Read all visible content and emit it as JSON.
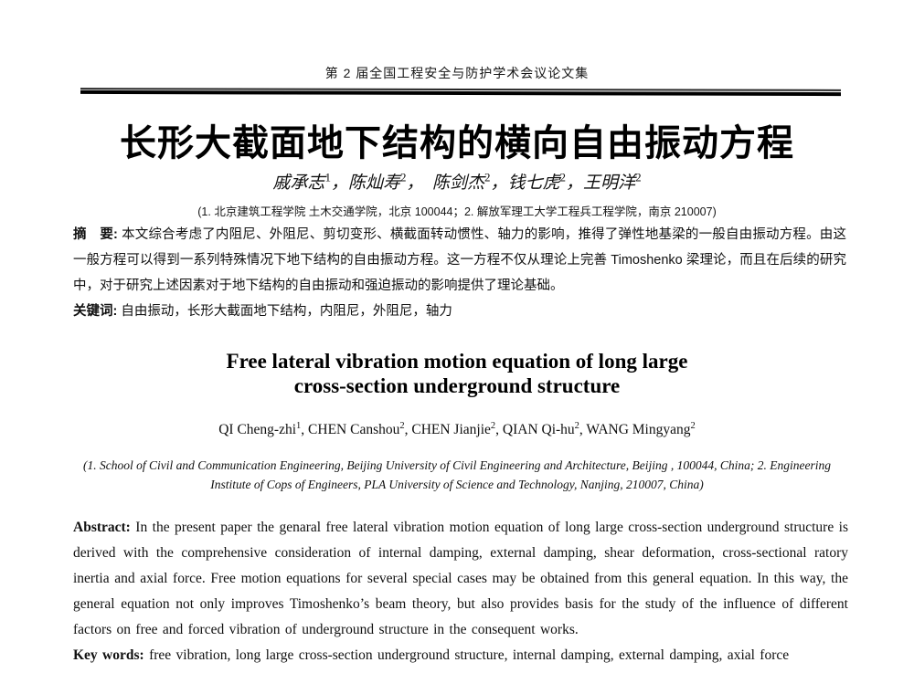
{
  "header": {
    "proceedings_title": "第 2 届全国工程安全与防护学术会议论文集"
  },
  "cn": {
    "title": "长形大截面地下结构的横向自由振动方程",
    "authors": [
      {
        "name": "戚承志",
        "sup": "1",
        "sep": "，"
      },
      {
        "name": "陈灿寿",
        "sup": "2",
        "sep": "，　"
      },
      {
        "name": "陈剑杰",
        "sup": "2",
        "sep": "，"
      },
      {
        "name": "钱七虎",
        "sup": "2",
        "sep": "，"
      },
      {
        "name": "王明洋",
        "sup": "2",
        "sep": ""
      }
    ],
    "affiliation": "(1. 北京建筑工程学院 土木交通学院，北京 100044；2. 解放军理工大学工程兵工程学院，南京 210007)",
    "abstract_label": "摘　要:",
    "abstract_text": "本文综合考虑了内阻尼、外阻尼、剪切变形、横截面转动惯性、轴力的影响，推得了弹性地基梁的一般自由振动方程。由这一般方程可以得到一系列特殊情况下地下结构的自由振动方程。这一方程不仅从理论上完善 Timoshenko 梁理论，而且在后续的研究中，对于研究上述因素对于地下结构的自由振动和强迫振动的影响提供了理论基础。",
    "keywords_label": "关键词:",
    "keywords_text": "自由振动，长形大截面地下结构，内阻尼，外阻尼，轴力"
  },
  "en": {
    "title_line1": "Free lateral vibration motion equation of long large",
    "title_line2": "cross-section underground structure",
    "authors": [
      {
        "name": "QI Cheng-zhi",
        "sup": "1",
        "sep": ", "
      },
      {
        "name": "CHEN Canshou",
        "sup": "2",
        "sep": ", "
      },
      {
        "name": "CHEN Jianjie",
        "sup": "2",
        "sep": ", "
      },
      {
        "name": "QIAN Qi-hu",
        "sup": "2",
        "sep": ", "
      },
      {
        "name": "WANG Mingyang",
        "sup": "2",
        "sep": ""
      }
    ],
    "affiliation": "(1. School of Civil and Communication Engineering, Beijing University of Civil Engineering and Architecture, Beijing , 100044, China; 2. Engineering Institute of Cops of Engineers, PLA University of Science and Technology, Nanjing, 210007, China)",
    "abstract_label": "Abstract:",
    "abstract_text": "In the present paper the genaral free lateral vibration motion equation of long large cross-section underground structure is derived with the comprehensive consideration of internal damping, external damping, shear deformation, cross-sectional ratory inertia and axial force. Free motion equations for several special cases may be obtained from this general equation. In this way, the general equation not only improves Timoshenko’s beam theory, but also provides basis for the study of the influence of different factors on free and forced vibration of underground structure in the consequent works.",
    "keywords_label": "Key words:",
    "keywords_text": "free vibration, long large cross-section underground structure, internal damping, external damping, axial force"
  }
}
